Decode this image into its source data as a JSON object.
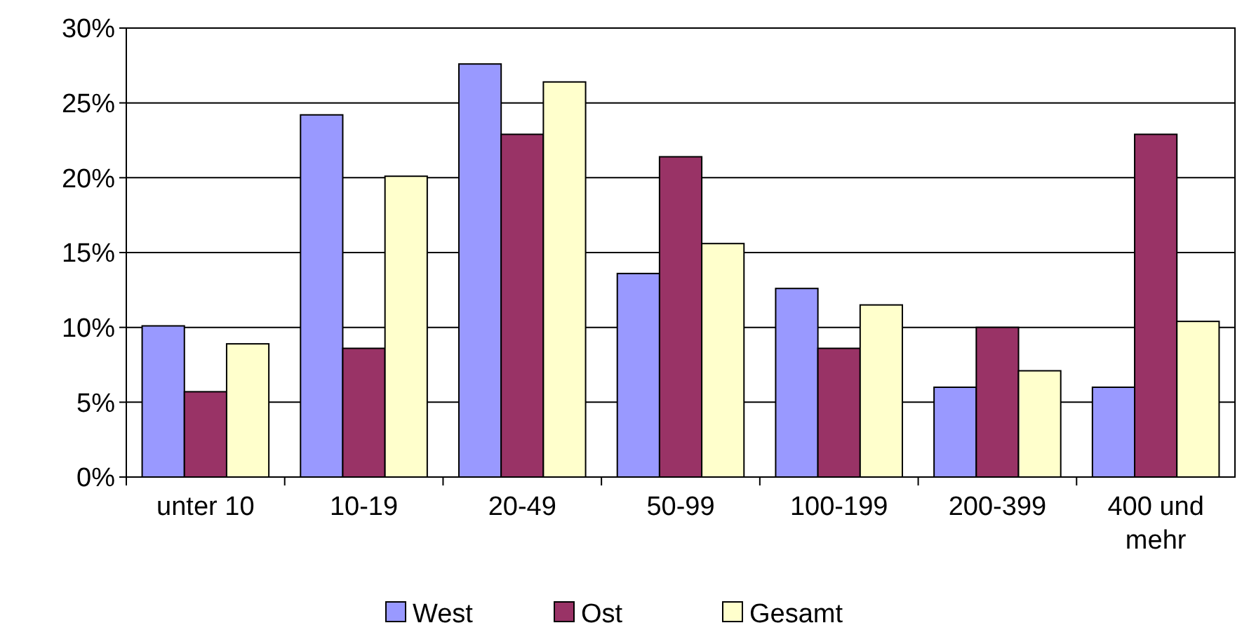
{
  "chart_data": {
    "type": "bar",
    "categories": [
      "unter 10",
      "10-19",
      "20-49",
      "50-99",
      "100-199",
      "200-399",
      "400 und mehr"
    ],
    "series": [
      {
        "name": "West",
        "color": "#9999ff",
        "values": [
          10.1,
          24.2,
          27.6,
          13.6,
          12.6,
          6.0,
          6.0
        ]
      },
      {
        "name": "Ost",
        "color": "#993366",
        "values": [
          5.7,
          8.6,
          22.9,
          21.4,
          8.6,
          10.0,
          22.9
        ]
      },
      {
        "name": "Gesamt",
        "color": "#ffffcc",
        "values": [
          8.9,
          20.1,
          26.4,
          15.6,
          11.5,
          7.1,
          10.4
        ]
      }
    ],
    "ylim": [
      0,
      30
    ],
    "yticks": [
      {
        "value": 0,
        "label": "0%"
      },
      {
        "value": 5,
        "label": "5%"
      },
      {
        "value": 10,
        "label": "10%"
      },
      {
        "value": 15,
        "label": "15%"
      },
      {
        "value": 20,
        "label": "20%"
      },
      {
        "value": 25,
        "label": "25%"
      },
      {
        "value": 30,
        "label": "30%"
      }
    ],
    "grid": "y",
    "legend": "bottom"
  }
}
